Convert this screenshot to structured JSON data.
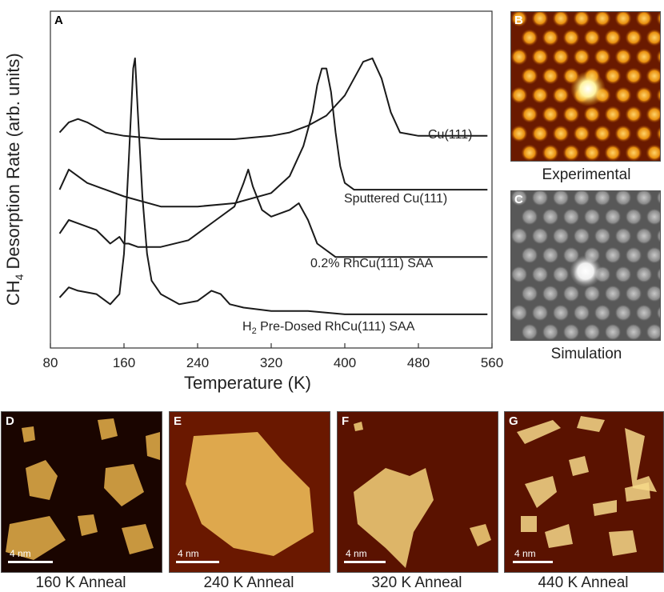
{
  "panel_a": {
    "letter": "A",
    "chart_data": {
      "type": "line",
      "xlabel": "Temperature (K)",
      "ylabel": "CH4 Desorption Rate (arb. units)",
      "xlim": [
        90,
        560
      ],
      "xticks": [
        80,
        160,
        240,
        320,
        400,
        480,
        560
      ],
      "ylim": [
        0,
        1
      ],
      "grid": false,
      "series": [
        {
          "name": "Cu(111)",
          "x": [
            90,
            100,
            110,
            120,
            140,
            160,
            200,
            240,
            280,
            320,
            340,
            360,
            380,
            400,
            410,
            420,
            430,
            440,
            450,
            460,
            480,
            520,
            555
          ],
          "y": [
            0.64,
            0.67,
            0.68,
            0.67,
            0.64,
            0.63,
            0.62,
            0.62,
            0.62,
            0.63,
            0.64,
            0.66,
            0.69,
            0.75,
            0.8,
            0.85,
            0.86,
            0.8,
            0.7,
            0.64,
            0.63,
            0.63,
            0.63
          ]
        },
        {
          "name": "Sputtered Cu(111)",
          "x": [
            90,
            100,
            110,
            120,
            140,
            160,
            200,
            240,
            280,
            320,
            340,
            355,
            365,
            370,
            375,
            380,
            385,
            390,
            395,
            400,
            410,
            440,
            480,
            520,
            555
          ],
          "y": [
            0.47,
            0.53,
            0.51,
            0.49,
            0.47,
            0.45,
            0.42,
            0.42,
            0.43,
            0.46,
            0.51,
            0.6,
            0.7,
            0.78,
            0.83,
            0.83,
            0.76,
            0.64,
            0.54,
            0.49,
            0.47,
            0.47,
            0.47,
            0.47,
            0.47
          ]
        },
        {
          "name": "0.2% RhCu(111) SAA",
          "x": [
            90,
            100,
            110,
            130,
            145,
            155,
            160,
            165,
            175,
            200,
            230,
            260,
            280,
            290,
            295,
            300,
            310,
            320,
            340,
            350,
            360,
            370,
            390,
            420,
            480,
            520,
            555
          ],
          "y": [
            0.34,
            0.38,
            0.37,
            0.35,
            0.31,
            0.33,
            0.31,
            0.31,
            0.3,
            0.3,
            0.32,
            0.38,
            0.42,
            0.49,
            0.53,
            0.48,
            0.41,
            0.39,
            0.41,
            0.43,
            0.38,
            0.31,
            0.27,
            0.27,
            0.27,
            0.27,
            0.27
          ]
        },
        {
          "name": "H2 Pre-Dosed RhCu(111) SAA",
          "x": [
            90,
            100,
            110,
            130,
            145,
            155,
            160,
            165,
            170,
            172,
            175,
            180,
            185,
            190,
            200,
            220,
            240,
            255,
            265,
            275,
            290,
            320,
            360,
            400,
            440,
            480,
            520,
            555
          ],
          "y": [
            0.15,
            0.18,
            0.17,
            0.16,
            0.13,
            0.16,
            0.28,
            0.55,
            0.83,
            0.86,
            0.7,
            0.45,
            0.28,
            0.2,
            0.16,
            0.13,
            0.14,
            0.17,
            0.16,
            0.13,
            0.12,
            0.11,
            0.11,
            0.1,
            0.1,
            0.1,
            0.1,
            0.1
          ]
        }
      ]
    },
    "series_labels": {
      "cu111": "Cu(111)",
      "sputtered": "Sputtered Cu(111)",
      "rhcu": "0.2% RhCu(111) SAA",
      "h2_prefix": "H",
      "h2_sub": "2",
      "h2_rest": " Pre-Dosed RhCu(111) SAA"
    },
    "ylabel_parts": {
      "pre": "CH",
      "sub": "4",
      "post": " Desorption Rate (arb. units)"
    },
    "xlabel": "Temperature (K)"
  },
  "panel_b": {
    "letter": "B",
    "caption": "Experimental"
  },
  "panel_c": {
    "letter": "C",
    "caption": "Simulation"
  },
  "panels_bottom": [
    {
      "letter": "D",
      "scale": "4 nm",
      "caption": "160 K Anneal"
    },
    {
      "letter": "E",
      "scale": "4 nm",
      "caption": "240 K Anneal"
    },
    {
      "letter": "F",
      "scale": "4 nm",
      "caption": "320 K Anneal"
    },
    {
      "letter": "G",
      "scale": "4 nm",
      "caption": "440 K Anneal"
    }
  ],
  "colors": {
    "line": "#1a1a1a",
    "stm_bg": "#5a1200",
    "stm_bright": "#ffe38a",
    "stm_dark": "#1a0400"
  }
}
